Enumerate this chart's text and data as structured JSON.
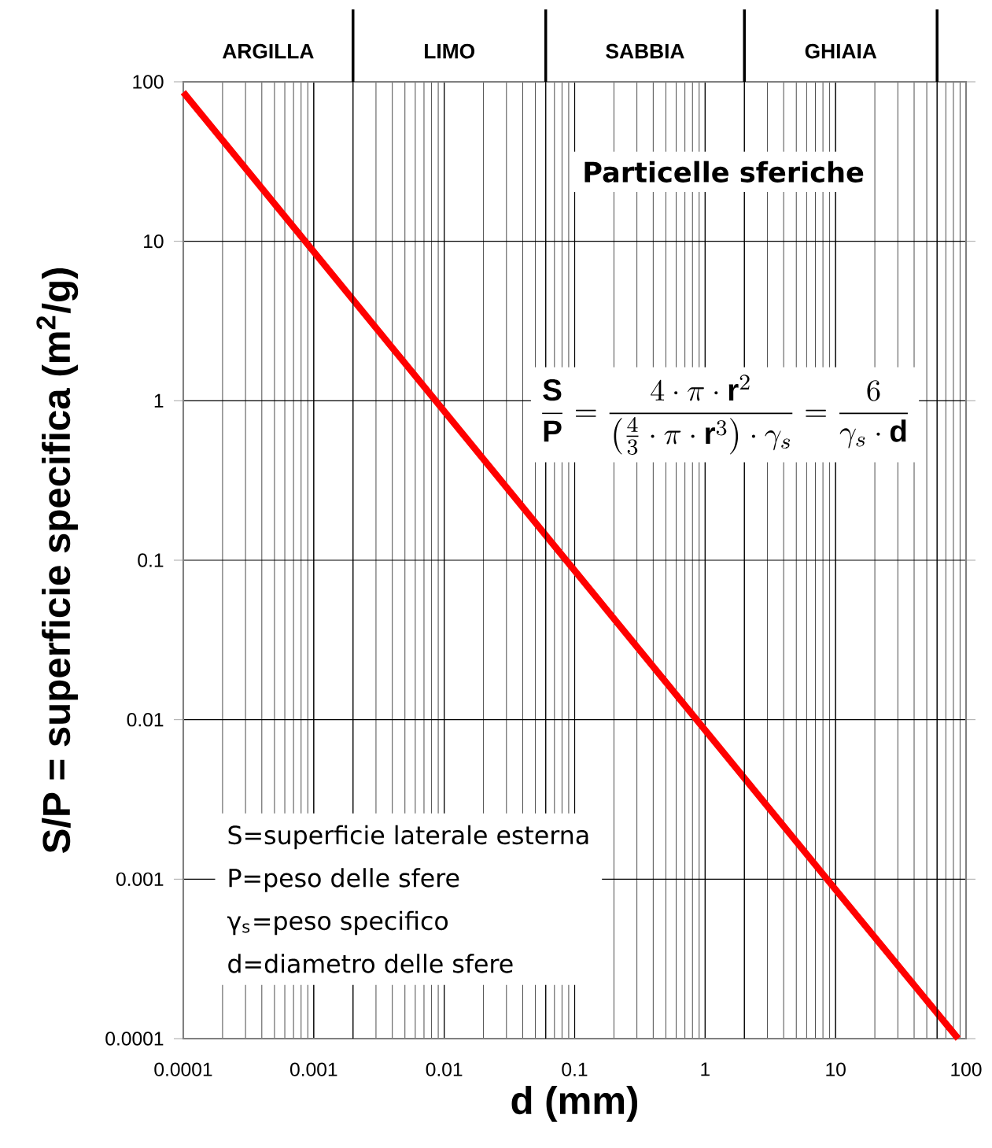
{
  "chart_data": {
    "type": "line",
    "xlabel": "d (mm)",
    "ylabel": "S/P = superficie specifica (m$^{2}$/g)",
    "log": "xy",
    "x": [
      0.0001,
      0.001,
      0.01,
      0.1,
      1,
      10,
      87
    ],
    "series": [
      {
        "color": "#ff0000",
        "values": [
          86,
          8.6,
          0.86,
          0.086,
          0.0086,
          0.00086,
          0.0001
        ]
      }
    ],
    "xlim": [
      0.0001,
      100
    ],
    "ylim": [
      0.0001,
      100
    ],
    "xticks": [
      0.0001,
      0.001,
      0.01,
      0.1,
      1,
      10,
      100
    ],
    "yticks": [
      0.0001,
      0.001,
      0.01,
      0.1,
      1,
      10,
      100
    ],
    "grid": true,
    "marker": "none",
    "line_style": "solid",
    "ref_lines": [
      {
        "axis": "x",
        "value": 0.002
      },
      {
        "axis": "x",
        "value": 0.06
      },
      {
        "axis": "x",
        "value": 2
      },
      {
        "axis": "x",
        "value": 60
      }
    ],
    "annotations": [
      "ARGILLA",
      "LIMO",
      "SABBIA",
      "GHIAIA",
      "Particelle sferiche",
      "\\frac{\\mathbf{S}}{\\mathbf{P}}=\\frac{4\\cdot\\pi\\cdot\\mathbf{r}^2}{\\left(\\frac{4}{3}\\cdot\\pi\\cdot\\mathbf{r}^3\\right)\\cdot\\gamma_s}=\\frac{6}{\\gamma_s\\cdot\\mathbf{d}}",
      "S=superficie laterale esterna",
      "P=peso delle sfere",
      "γ$_{s}$=peso specifico",
      "d=diametro delle sfere"
    ]
  }
}
